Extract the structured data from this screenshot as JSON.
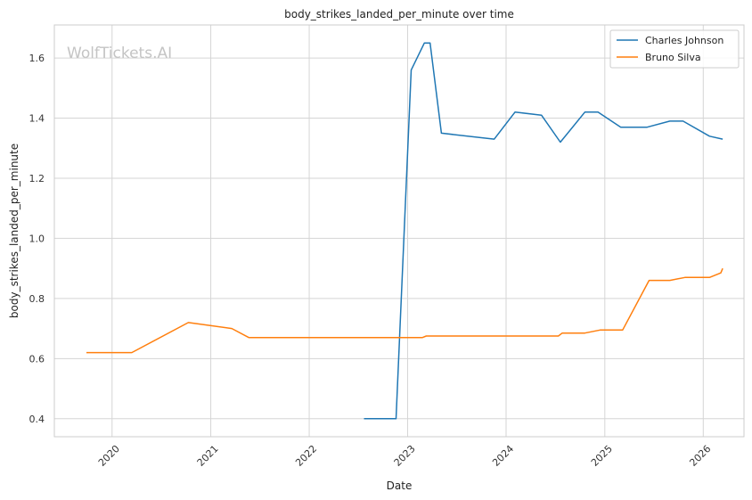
{
  "chart_data": {
    "type": "line",
    "title": "body_strikes_landed_per_minute over time",
    "xlabel": "Date",
    "ylabel": "body_strikes_landed_per_minute",
    "watermark": "WolfTickets.AI",
    "xlim": [
      "2019-06-01",
      "2026-06-01"
    ],
    "ylim": [
      0.34,
      1.71
    ],
    "x_ticks": [
      "2020-01-01",
      "2021-01-01",
      "2022-01-01",
      "2023-01-01",
      "2024-01-01",
      "2025-01-01",
      "2026-01-01"
    ],
    "x_tick_labels": [
      "2020",
      "2021",
      "2022",
      "2023",
      "2024",
      "2025",
      "2026"
    ],
    "y_ticks": [
      0.4,
      0.6,
      0.8,
      1.0,
      1.2,
      1.4,
      1.6
    ],
    "y_tick_labels": [
      "0.4",
      "0.6",
      "0.8",
      "1.0",
      "1.2",
      "1.4",
      "1.6"
    ],
    "grid": true,
    "legend": "top-right",
    "series": [
      {
        "name": "Charles Johnson",
        "color": "#1f77b4",
        "points": [
          [
            "2022-07-23",
            0.4
          ],
          [
            "2022-11-19",
            0.4
          ],
          [
            "2023-01-14",
            1.56
          ],
          [
            "2023-03-04",
            1.65
          ],
          [
            "2023-03-25",
            1.65
          ],
          [
            "2023-05-06",
            1.35
          ],
          [
            "2023-11-18",
            1.33
          ],
          [
            "2024-02-03",
            1.42
          ],
          [
            "2024-05-11",
            1.41
          ],
          [
            "2024-07-20",
            1.32
          ],
          [
            "2024-10-19",
            1.42
          ],
          [
            "2024-12-07",
            1.42
          ],
          [
            "2025-03-01",
            1.37
          ],
          [
            "2025-06-07",
            1.37
          ],
          [
            "2025-08-30",
            1.39
          ],
          [
            "2025-10-18",
            1.39
          ],
          [
            "2026-01-24",
            1.34
          ],
          [
            "2026-03-14",
            1.33
          ]
        ]
      },
      {
        "name": "Bruno Silva",
        "color": "#ff7f0e",
        "points": [
          [
            "2019-09-28",
            0.62
          ],
          [
            "2020-03-14",
            0.62
          ],
          [
            "2020-10-10",
            0.72
          ],
          [
            "2021-03-20",
            0.7
          ],
          [
            "2021-05-22",
            0.67
          ],
          [
            "2023-02-25",
            0.67
          ],
          [
            "2023-03-11",
            0.675
          ],
          [
            "2024-07-13",
            0.675
          ],
          [
            "2024-07-27",
            0.685
          ],
          [
            "2024-10-19",
            0.685
          ],
          [
            "2024-12-14",
            0.695
          ],
          [
            "2025-03-08",
            0.695
          ],
          [
            "2025-06-14",
            0.86
          ],
          [
            "2025-08-30",
            0.86
          ],
          [
            "2025-10-25",
            0.87
          ],
          [
            "2026-01-24",
            0.87
          ],
          [
            "2026-03-07",
            0.885
          ],
          [
            "2026-03-14",
            0.9
          ]
        ]
      }
    ]
  }
}
